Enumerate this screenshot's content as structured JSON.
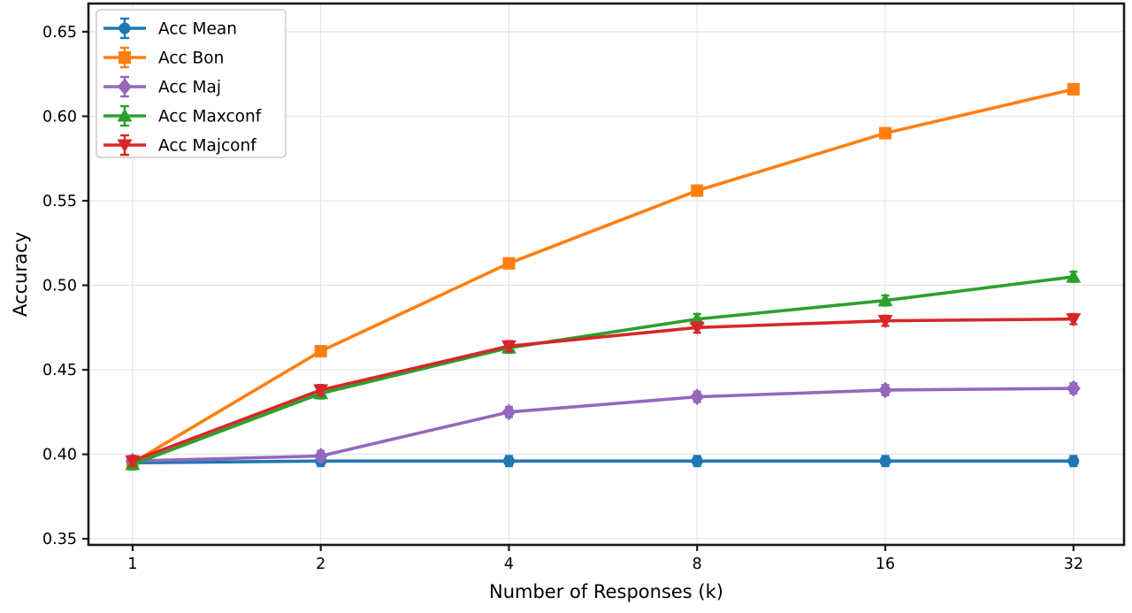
{
  "chart_data": {
    "type": "line",
    "xlabel": "Number of Responses (k)",
    "ylabel": "Accuracy",
    "x_scale": "log2",
    "x": [
      1,
      2,
      4,
      8,
      16,
      32
    ],
    "xtick_labels": [
      "1",
      "2",
      "4",
      "8",
      "16",
      "32"
    ],
    "ytick_values": [
      0.35,
      0.4,
      0.45,
      0.5,
      0.55,
      0.6,
      0.65
    ],
    "ytick_labels": [
      "0.35",
      "0.40",
      "0.45",
      "0.50",
      "0.55",
      "0.60",
      "0.65"
    ],
    "xlim": [
      0.85,
      38.55
    ],
    "ylim": [
      0.3464,
      0.6667
    ],
    "grid": true,
    "legend_position": "upper-left",
    "error_bars": {
      "shown": true,
      "approx_size": 0.003
    },
    "series": [
      {
        "name": "Acc Mean",
        "color": "#1f77b4",
        "marker": "circle",
        "values": [
          0.395,
          0.396,
          0.396,
          0.396,
          0.396,
          0.396
        ]
      },
      {
        "name": "Acc Bon",
        "color": "#ff7f0e",
        "marker": "square",
        "values": [
          0.395,
          0.461,
          0.513,
          0.556,
          0.59,
          0.616
        ]
      },
      {
        "name": "Acc Maj",
        "color": "#9467bd",
        "marker": "diamond",
        "values": [
          0.396,
          0.399,
          0.425,
          0.434,
          0.438,
          0.439
        ]
      },
      {
        "name": "Acc Maxconf",
        "color": "#2ca02c",
        "marker": "triangle-up",
        "values": [
          0.394,
          0.436,
          0.463,
          0.48,
          0.491,
          0.505
        ]
      },
      {
        "name": "Acc Majconf",
        "color": "#d62728",
        "marker": "triangle-down",
        "values": [
          0.396,
          0.438,
          0.464,
          0.475,
          0.479,
          0.48
        ]
      }
    ],
    "colors": {
      "spine": "#1a1a1a",
      "grid": "#e4e4e4",
      "legend_border": "#cccccc",
      "legend_bg": "#ffffff"
    }
  }
}
